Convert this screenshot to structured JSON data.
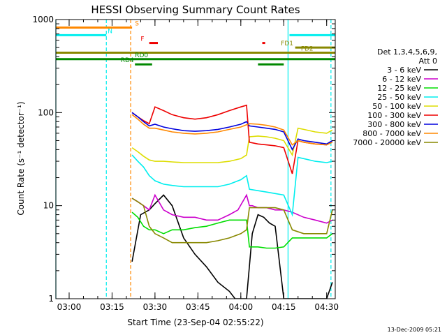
{
  "chart_data": {
    "type": "line",
    "title": "HESSI Observing Summary Count Rates",
    "xlabel": "Start Time (23-Sep-04 02:55:22)",
    "ylabel": "Count Rate (s⁻¹ detector⁻¹)",
    "yscale": "log",
    "ylim": [
      1,
      1000
    ],
    "xlim": [
      "02:55:22",
      "04:33:00"
    ],
    "x_ticks": [
      "03:00",
      "03:15",
      "03:30",
      "03:45",
      "04:00",
      "04:15",
      "04:30"
    ],
    "y_ticks": [
      "1",
      "10",
      "100",
      "1000"
    ],
    "grid": false,
    "legend_position": "right",
    "legend_title": [
      "Det 1,3,4,5,6,9,",
      "Att 0"
    ],
    "footer": "13-Dec-2009 05:21",
    "series": [
      {
        "name": "3 - 6 keV",
        "color": "#000000",
        "x": [
          "03:22",
          "03:25",
          "03:28",
          "03:30",
          "03:33",
          "03:36",
          "03:40",
          "03:44",
          "03:48",
          "03:52",
          "03:56",
          "03:58",
          "04:02",
          "04:04",
          "04:06",
          "04:08",
          "04:10",
          "04:12",
          "04:15",
          "04:17",
          "04:22",
          "04:26",
          "04:30",
          "04:32"
        ],
        "y": [
          2.5,
          8.0,
          9.0,
          10.5,
          13.0,
          10.0,
          4.5,
          3.0,
          2.2,
          1.5,
          1.2,
          1.0,
          1.0,
          5.0,
          8.0,
          7.5,
          6.5,
          6.0,
          1.0,
          1.0,
          1.0,
          1.0,
          1.0,
          1.5
        ]
      },
      {
        "name": "6 - 12 keV",
        "color": "#cc00cc",
        "x": [
          "03:22",
          "03:24",
          "03:26",
          "03:28",
          "03:30",
          "03:33",
          "03:36",
          "03:40",
          "03:44",
          "03:48",
          "03:52",
          "03:56",
          "03:59",
          "04:02",
          "04:03",
          "04:04",
          "04:06",
          "04:09",
          "04:12",
          "04:15",
          "04:18",
          "04:22",
          "04:26",
          "04:30",
          "04:32"
        ],
        "y": [
          12.0,
          11.0,
          10.0,
          9.0,
          13.0,
          9.0,
          8.0,
          7.5,
          7.5,
          7.0,
          7.0,
          8.0,
          9.0,
          13.0,
          10.0,
          10.0,
          9.5,
          9.5,
          9.0,
          9.0,
          8.5,
          7.5,
          7.0,
          6.5,
          7.0
        ]
      },
      {
        "name": "12 - 25 keV",
        "color": "#00dd00",
        "x": [
          "03:22",
          "03:24",
          "03:26",
          "03:28",
          "03:30",
          "03:33",
          "03:36",
          "03:40",
          "03:44",
          "03:48",
          "03:52",
          "03:56",
          "04:00",
          "04:02",
          "04:03",
          "04:06",
          "04:09",
          "04:12",
          "04:15",
          "04:18",
          "04:22",
          "04:26",
          "04:30",
          "04:32"
        ],
        "y": [
          8.5,
          7.5,
          6.0,
          5.5,
          5.5,
          5.0,
          5.5,
          5.5,
          5.8,
          6.0,
          6.5,
          7.0,
          7.0,
          7.0,
          3.6,
          3.6,
          3.5,
          3.5,
          3.6,
          4.5,
          4.5,
          4.5,
          4.5,
          5.0
        ]
      },
      {
        "name": "25 - 50 keV",
        "color": "#00eeee",
        "x": [
          "03:22",
          "03:24",
          "03:26",
          "03:28",
          "03:30",
          "03:33",
          "03:36",
          "03:40",
          "03:44",
          "03:48",
          "03:52",
          "03:56",
          "04:00",
          "04:02",
          "04:03",
          "04:06",
          "04:09",
          "04:12",
          "04:15",
          "04:18",
          "04:20",
          "04:22",
          "04:26",
          "04:30",
          "04:32"
        ],
        "y": [
          35.0,
          30.0,
          26.0,
          21.0,
          18.5,
          17.0,
          16.5,
          16.0,
          16.0,
          16.0,
          16.0,
          17.0,
          19.0,
          21.0,
          15.0,
          14.5,
          14.0,
          13.5,
          13.0,
          8.0,
          33.0,
          32.0,
          30.0,
          29.0,
          30.0
        ]
      },
      {
        "name": "50 - 100 keV",
        "color": "#dddd00",
        "x": [
          "03:22",
          "03:24",
          "03:26",
          "03:28",
          "03:30",
          "03:33",
          "03:36",
          "03:40",
          "03:44",
          "03:48",
          "03:52",
          "03:56",
          "04:00",
          "04:02",
          "04:03",
          "04:06",
          "04:09",
          "04:12",
          "04:15",
          "04:18",
          "04:20",
          "04:22",
          "04:26",
          "04:30",
          "04:32"
        ],
        "y": [
          42.0,
          38.0,
          34.0,
          31.0,
          30.0,
          30.0,
          29.5,
          29.0,
          29.0,
          29.0,
          29.0,
          30.0,
          32.0,
          35.0,
          55.0,
          56.0,
          55.0,
          53.0,
          50.0,
          35.0,
          68.0,
          66.0,
          62.0,
          60.0,
          65.0
        ]
      },
      {
        "name": "100 - 300 keV",
        "color": "#ee0000",
        "x": [
          "03:22",
          "03:24",
          "03:26",
          "03:28",
          "03:30",
          "03:33",
          "03:36",
          "03:40",
          "03:44",
          "03:48",
          "03:52",
          "03:56",
          "04:00",
          "04:02",
          "04:03",
          "04:06",
          "04:09",
          "04:12",
          "04:15",
          "04:18",
          "04:20",
          "04:22",
          "04:26",
          "04:30",
          "04:32"
        ],
        "y": [
          100.0,
          90.0,
          82.0,
          76.0,
          115.0,
          105.0,
          95.0,
          88.0,
          85.0,
          88.0,
          95.0,
          105.0,
          115.0,
          120.0,
          48.0,
          46.0,
          45.0,
          44.0,
          42.0,
          22.0,
          50.0,
          48.0,
          46.0,
          45.0,
          50.0
        ]
      },
      {
        "name": "300 - 800 keV",
        "color": "#0000dd",
        "x": [
          "03:22",
          "03:24",
          "03:26",
          "03:28",
          "03:30",
          "03:33",
          "03:36",
          "03:40",
          "03:44",
          "03:48",
          "03:52",
          "03:56",
          "04:00",
          "04:02",
          "04:03",
          "04:06",
          "04:09",
          "04:12",
          "04:15",
          "04:18",
          "04:20",
          "04:22",
          "04:26",
          "04:30",
          "04:32"
        ],
        "y": [
          100.0,
          90.0,
          80.0,
          72.0,
          75.0,
          70.0,
          67.0,
          64.0,
          63.0,
          64.0,
          66.0,
          70.0,
          75.0,
          80.0,
          72.0,
          70.0,
          68.0,
          66.0,
          62.0,
          40.0,
          52.0,
          50.0,
          48.0,
          46.0,
          50.0
        ]
      },
      {
        "name": "800 - 7000 keV",
        "color": "#ff8800",
        "x": [
          "03:22",
          "03:24",
          "03:26",
          "03:28",
          "03:30",
          "03:33",
          "03:36",
          "03:40",
          "03:44",
          "03:48",
          "03:52",
          "03:56",
          "04:00",
          "04:02",
          "04:03",
          "04:06",
          "04:09",
          "04:12",
          "04:15",
          "04:18",
          "04:20",
          "04:22",
          "04:26",
          "04:30",
          "04:32"
        ],
        "y": [
          95.0,
          85.0,
          75.0,
          68.0,
          68.0,
          65.0,
          62.0,
          60.0,
          59.0,
          60.0,
          62.0,
          66.0,
          70.0,
          74.0,
          76.0,
          75.0,
          73.0,
          70.0,
          65.0,
          45.0,
          50.0,
          48.0,
          46.0,
          45.0,
          48.0
        ]
      },
      {
        "name": "7000 - 20000 keV",
        "color": "#888800",
        "x": [
          "03:22",
          "03:24",
          "03:26",
          "03:28",
          "03:30",
          "03:33",
          "03:36",
          "03:40",
          "03:44",
          "03:48",
          "03:52",
          "03:56",
          "04:00",
          "04:02",
          "04:03",
          "04:06",
          "04:09",
          "04:12",
          "04:15",
          "04:18",
          "04:22",
          "04:26",
          "04:30",
          "04:32"
        ],
        "y": [
          12.0,
          11.0,
          10.0,
          6.0,
          5.0,
          4.5,
          4.0,
          4.0,
          4.0,
          4.0,
          4.2,
          4.5,
          5.0,
          5.5,
          9.5,
          9.5,
          9.5,
          9.5,
          9.0,
          5.5,
          5.0,
          5.0,
          5.0,
          9.0
        ]
      }
    ],
    "flag_bars": [
      {
        "label": "S",
        "color": "#ff8800",
        "level": 820,
        "start": "02:55:22",
        "end": "03:22:00",
        "label_at": "03:23"
      },
      {
        "label": "N",
        "color": "#00eeee",
        "level": 680,
        "start": "02:55:22",
        "end": "03:13:00",
        "label_at": "03:13:30"
      },
      {
        "label": "N",
        "color": "#00eeee",
        "level": 680,
        "start": "04:17:00",
        "end": "04:33:00",
        "label_at": ""
      },
      {
        "label": "F",
        "color": "#ee0000",
        "level": 560,
        "start": "03:28:00",
        "end": "03:31:00",
        "label_at": "03:25"
      },
      {
        "label": "F",
        "color": "#ee0000",
        "level": 560,
        "start": "04:07:30",
        "end": "04:08:30",
        "label_at": ""
      },
      {
        "label": "FD1",
        "color": "#888800",
        "level": 500,
        "start": "04:19:00",
        "end": "04:33:00",
        "label_at": "04:14"
      },
      {
        "label": "FD2",
        "color": "#888800",
        "level": 440,
        "start": "02:55:22",
        "end": "04:33:00",
        "label_at": "04:21"
      },
      {
        "label": "RD0",
        "color": "#008800",
        "level": 375,
        "start": "02:55:22",
        "end": "04:33:00",
        "label_at": "03:23"
      },
      {
        "label": "RD4",
        "color": "#008800",
        "level": 330,
        "start": "03:23:00",
        "end": "03:29:00",
        "label_at": "03:18"
      },
      {
        "label": "RD4",
        "color": "#008800",
        "level": 330,
        "start": "04:06:00",
        "end": "04:15:00",
        "label_at": ""
      }
    ],
    "vlines": [
      {
        "time": "02:55:22",
        "color": "#00eeee",
        "style": "solid"
      },
      {
        "time": "03:13:00",
        "color": "#00eeee",
        "style": "dashed"
      },
      {
        "time": "03:21:30",
        "color": "#ff8800",
        "style": "dashed"
      },
      {
        "time": "04:16:30",
        "color": "#00eeee",
        "style": "solid"
      },
      {
        "time": "04:31:30",
        "color": "#00eeee",
        "style": "dashed"
      }
    ]
  }
}
